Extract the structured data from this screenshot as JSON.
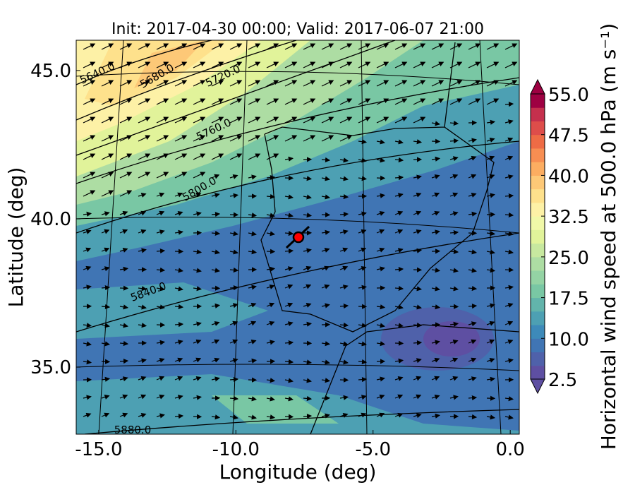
{
  "chart_data": {
    "type": "map",
    "title": "Init: 2017-04-30 00:00; Valid: 2017-06-07 21:00",
    "xlabel": "Longitude (deg)",
    "ylabel": "Latitude (deg)",
    "xlim": [
      -15.82,
      0.33
    ],
    "ylim": [
      32.74,
      46.02
    ],
    "xticks": [
      {
        "value": -15,
        "label": "-15.0"
      },
      {
        "value": -10,
        "label": "-10.0"
      },
      {
        "value": -5,
        "label": "-5.0"
      },
      {
        "value": 0,
        "label": "0.0"
      }
    ],
    "yticks": [
      {
        "value": 35,
        "label": "35.0"
      },
      {
        "value": 40,
        "label": "40.0"
      },
      {
        "value": 45,
        "label": "45.0"
      }
    ],
    "contour_labels": [
      "5640.0",
      "5680.0",
      "5720.0",
      "5760.0",
      "5800.0",
      "5840.0",
      "5880.0"
    ],
    "marker": {
      "lon": -7.72,
      "lat": 39.38,
      "color": "#ff0000"
    },
    "colorbar": {
      "label": "Horizontal wind speed at 500.0 hPa (m s⁻¹)",
      "lim": [
        2.5,
        55
      ],
      "ticks": [
        {
          "value": 2.5,
          "label": "2.5"
        },
        {
          "value": 10,
          "label": "10.0"
        },
        {
          "value": 17.5,
          "label": "17.5"
        },
        {
          "value": 25,
          "label": "25.0"
        },
        {
          "value": 32.5,
          "label": "32.5"
        },
        {
          "value": 40,
          "label": "40.0"
        },
        {
          "value": 47.5,
          "label": "47.5"
        },
        {
          "value": 55,
          "label": "55.0"
        }
      ],
      "colors": [
        "#5e4fa2",
        "#4f61aa",
        "#4075b4",
        "#3d8ab9",
        "#4da0b3",
        "#62b4ab",
        "#79c7a4",
        "#94d3a4",
        "#addda3",
        "#c7e89f",
        "#e1f39a",
        "#f1f8a8",
        "#fdf1a6",
        "#fee18c",
        "#fdc877",
        "#fcad61",
        "#f78e52",
        "#ee6b45",
        "#de4d4a",
        "#c5304d",
        "#9e0142"
      ]
    }
  }
}
